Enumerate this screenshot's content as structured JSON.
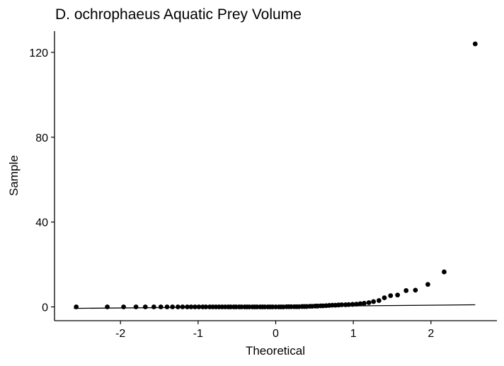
{
  "chart_data": {
    "type": "scatter",
    "title": "D. ochrophaeus Aquatic Prey Volume",
    "xlabel": "Theoretical",
    "ylabel": "Sample",
    "xlim": [
      -2.85,
      2.85
    ],
    "ylim": [
      -6.5,
      130
    ],
    "x_ticks": [
      -2,
      -1,
      0,
      1,
      2
    ],
    "y_ticks": [
      0,
      40,
      80,
      120
    ],
    "grid": false,
    "legend": "none",
    "point_color": "#000000",
    "reference_line": {
      "x": [
        -2.6,
        2.57
      ],
      "y": [
        -0.7,
        1.0
      ]
    },
    "points": {
      "x": [
        -2.57,
        -2.17,
        -1.96,
        -1.8,
        -1.68,
        -1.57,
        -1.48,
        -1.4,
        -1.33,
        -1.26,
        -1.2,
        -1.14,
        -1.09,
        -1.04,
        -0.99,
        -0.94,
        -0.9,
        -0.85,
        -0.81,
        -0.77,
        -0.73,
        -0.69,
        -0.65,
        -0.61,
        -0.58,
        -0.54,
        -0.51,
        -0.47,
        -0.44,
        -0.4,
        -0.37,
        -0.34,
        -0.3,
        -0.27,
        -0.24,
        -0.2,
        -0.17,
        -0.14,
        -0.1,
        -0.07,
        -0.04,
        0.0,
        0.04,
        0.07,
        0.1,
        0.14,
        0.17,
        0.2,
        0.24,
        0.27,
        0.3,
        0.34,
        0.37,
        0.4,
        0.44,
        0.47,
        0.51,
        0.54,
        0.58,
        0.61,
        0.65,
        0.69,
        0.73,
        0.77,
        0.81,
        0.85,
        0.9,
        0.94,
        0.99,
        1.04,
        1.09,
        1.14,
        1.2,
        1.26,
        1.33,
        1.4,
        1.48,
        1.57,
        1.68,
        1.8,
        1.96,
        2.17,
        2.57
      ],
      "y": [
        0.0,
        0.0,
        0.0,
        0.0,
        0.0,
        0.0,
        0.0,
        0.0,
        0.0,
        0.0,
        0.0,
        0.0,
        0.0,
        0.0,
        0.0,
        0.0,
        0.0,
        0.0,
        0.0,
        0.0,
        0.0,
        0.0,
        0.0,
        0.0,
        0.0,
        0.0,
        0.0,
        0.0,
        0.0,
        0.0,
        0.0,
        0.0,
        0.0,
        0.0,
        0.0,
        0.0,
        0.0,
        0.0,
        0.0,
        0.0,
        0.0,
        0.0,
        0.0,
        0.0,
        0.0,
        0.1,
        0.1,
        0.1,
        0.1,
        0.1,
        0.1,
        0.2,
        0.2,
        0.2,
        0.3,
        0.3,
        0.4,
        0.4,
        0.5,
        0.5,
        0.6,
        0.7,
        0.8,
        0.8,
        0.9,
        1.0,
        1.0,
        1.1,
        1.2,
        1.3,
        1.5,
        1.7,
        2.0,
        2.5,
        3.0,
        4.3,
        5.3,
        5.6,
        7.7,
        7.9,
        10.6,
        16.5,
        124.0
      ]
    }
  }
}
